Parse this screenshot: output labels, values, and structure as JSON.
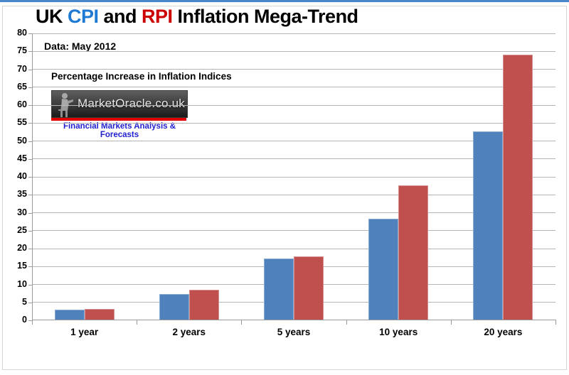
{
  "page": {
    "top_accent_color": "#4a86c9",
    "frame_color": "#d7d7d7"
  },
  "title": {
    "parts": [
      {
        "text": "UK ",
        "color": "#000000"
      },
      {
        "text": "CPI",
        "color": "#1f7ad4"
      },
      {
        "text": " and ",
        "color": "#000000"
      },
      {
        "text": "RPI",
        "color": "#cc0000"
      },
      {
        "text": " Inflation Mega-Trend",
        "color": "#000000"
      }
    ]
  },
  "annotations": {
    "data_note": "Data: May 2012",
    "subtitle": "Percentage Increase in Inflation Indices"
  },
  "logo": {
    "brand": "MarketOracle.co.uk",
    "tagline": "Financial Markets Analysis & Forecasts",
    "figure_icon": "seated-reader-silhouette",
    "tagline_color": "#2121d1",
    "underline_color": "#e00000"
  },
  "chart_data": {
    "type": "bar",
    "title": "UK CPI and RPI Inflation Mega-Trend",
    "categories": [
      "1 year",
      "2 years",
      "5 years",
      "10 years",
      "20 years"
    ],
    "series": [
      {
        "name": "CPI",
        "color": "#4f81bd",
        "edge_color": "#8aabd3",
        "values": [
          3.0,
          7.4,
          17.2,
          28.4,
          52.7
        ]
      },
      {
        "name": "RPI",
        "color": "#c0504d",
        "edge_color": "#d4908e",
        "values": [
          3.2,
          8.5,
          17.8,
          37.7,
          74.0
        ]
      }
    ],
    "xlabel": "",
    "ylabel": "Percentage Increase in Inflation Indices",
    "ylim": [
      0,
      80
    ],
    "ytick_step": 5,
    "grid": true,
    "gridline_color": "#b5b5b5",
    "axis_color": "#9a9a9a",
    "legend": "none"
  }
}
